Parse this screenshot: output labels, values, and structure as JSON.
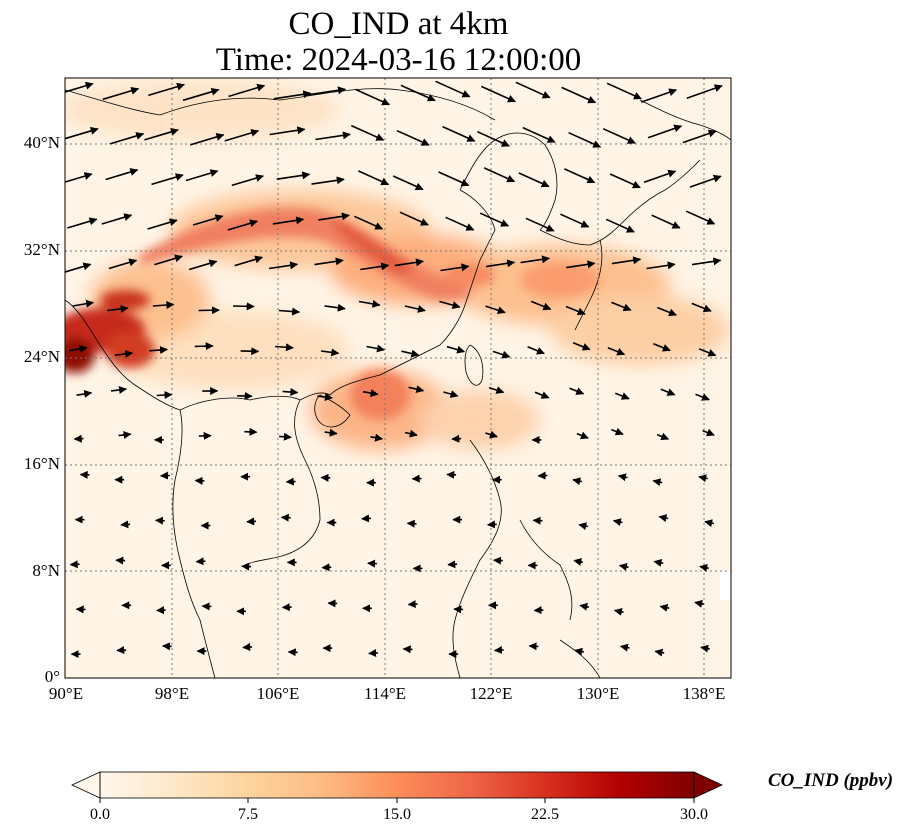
{
  "figure": {
    "title_line1": "CO_IND at 4km",
    "title_line2": "Time: 2024-03-16 12:00:00"
  },
  "axes": {
    "lon_ticks": [
      "90°E",
      "98°E",
      "106°E",
      "114°E",
      "122°E",
      "130°E",
      "138°E"
    ],
    "lat_ticks": [
      "0°",
      "8°N",
      "16°N",
      "24°N",
      "32°N",
      "40°N"
    ],
    "lon_range": [
      90,
      140
    ],
    "lat_range": [
      0,
      45
    ]
  },
  "colorbar": {
    "label": "CO_IND (ppbv)",
    "ticks": [
      "0.0",
      "7.5",
      "15.0",
      "22.5",
      "30.0"
    ],
    "range": [
      0,
      30
    ],
    "extend": "both",
    "colormap": "OrRd",
    "colors": [
      "#fff7ec",
      "#fee8c8",
      "#fdd49e",
      "#fdbb84",
      "#fc8d59",
      "#ef6548",
      "#d7301f",
      "#b30000",
      "#7f0000"
    ]
  },
  "map": {
    "grid": "dotted",
    "vectors": "wind arrows"
  }
}
